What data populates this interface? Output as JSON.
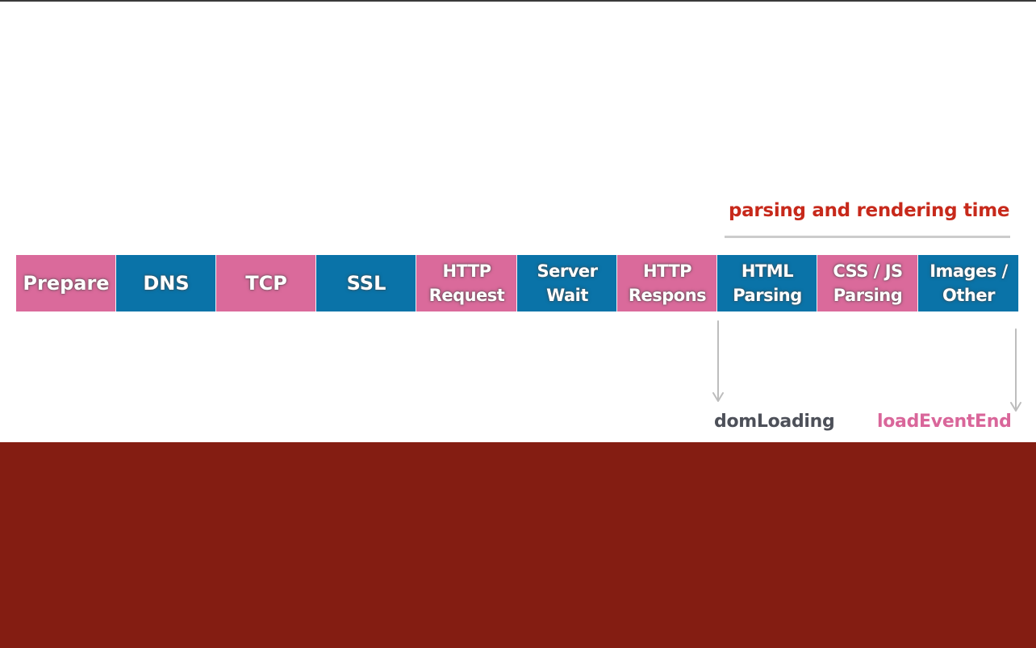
{
  "diagram": {
    "phase_label": "parsing and rendering time",
    "segments": [
      {
        "label": "Prepare",
        "color": "#da6a9b"
      },
      {
        "label": "DNS",
        "color": "#0a73a8"
      },
      {
        "label": "TCP",
        "color": "#da6a9b"
      },
      {
        "label": "SSL",
        "color": "#0a73a8"
      },
      {
        "label": "HTTP\nRequest",
        "color": "#da6a9b"
      },
      {
        "label": "Server\nWait",
        "color": "#0a73a8"
      },
      {
        "label": "HTTP\nRespons",
        "color": "#da6a9b"
      },
      {
        "label": "HTML\nParsing",
        "color": "#0a73a8"
      },
      {
        "label": "CSS / JS\nParsing",
        "color": "#da6a9b"
      },
      {
        "label": "Images /\nOther",
        "color": "#0a73a8"
      }
    ],
    "markers": {
      "dom_loading": {
        "label": "domLoading",
        "color": "#4d5059"
      },
      "load_event_end": {
        "label": "loadEventEnd",
        "color": "#d9669a"
      }
    }
  },
  "colors": {
    "band": "#841d12",
    "phase_label": "#c7291b",
    "rule": "#cccccc"
  }
}
